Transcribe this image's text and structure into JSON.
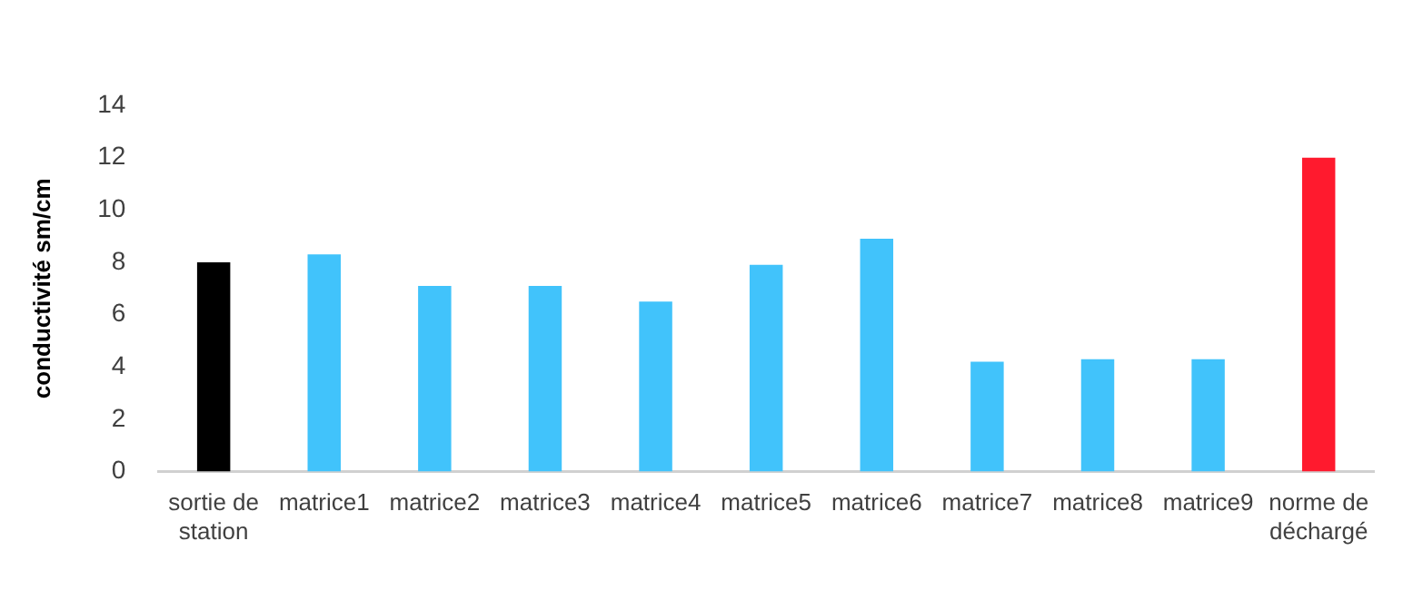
{
  "chart_data": {
    "type": "bar",
    "ylabel": "conductivité sm/cm",
    "categories": [
      "sortie de station",
      "matrice1",
      "matrice2",
      "matrice3",
      "matrice4",
      "matrice5",
      "matrice6",
      "matrice7",
      "matrice8",
      "matrice9",
      "norme de déchargé"
    ],
    "values": [
      8.0,
      8.3,
      7.1,
      7.1,
      6.5,
      7.9,
      8.9,
      4.2,
      4.3,
      4.3,
      12.0
    ],
    "colors": [
      "#000000",
      "#41c3fb",
      "#41c3fb",
      "#41c3fb",
      "#41c3fb",
      "#41c3fb",
      "#41c3fb",
      "#41c3fb",
      "#41c3fb",
      "#41c3fb",
      "#ff1a2e"
    ],
    "ylim": [
      0,
      14
    ],
    "yticks": [
      0,
      2,
      4,
      6,
      8,
      10,
      12,
      14
    ],
    "grid": false,
    "legend": false
  }
}
